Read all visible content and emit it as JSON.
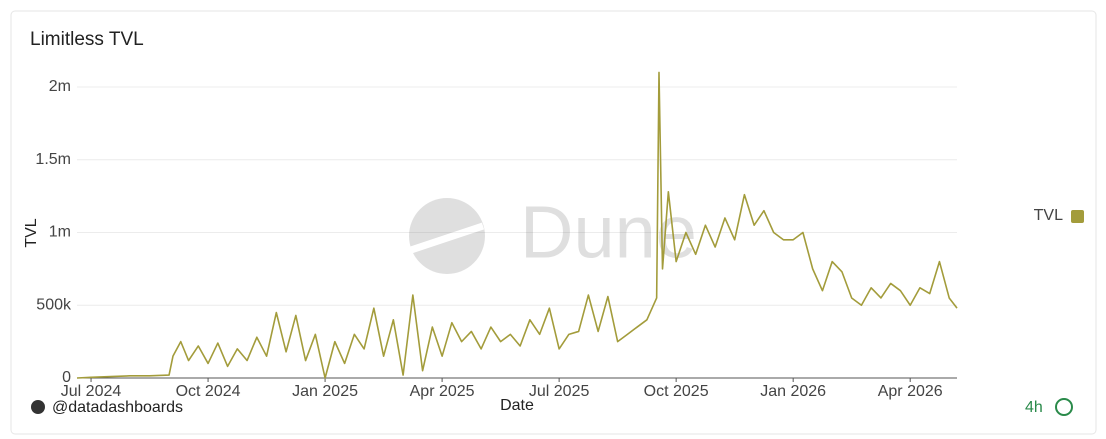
{
  "chart_data": {
    "type": "line",
    "title": "Limitless TVL",
    "x_label": "Date",
    "y_label": "TVL",
    "watermark": "Dune",
    "author": "@datadashboards",
    "refresh": "4h",
    "x": [
      -0.36,
      0,
      0.5,
      1,
      1.5,
      2,
      2.1,
      2.3,
      2.5,
      2.75,
      3,
      3.25,
      3.5,
      3.75,
      4,
      4.25,
      4.5,
      4.75,
      5,
      5.25,
      5.5,
      5.75,
      6,
      6.25,
      6.5,
      6.75,
      7,
      7.25,
      7.5,
      7.75,
      8,
      8.25,
      8.5,
      8.75,
      9,
      9.25,
      9.5,
      9.75,
      10,
      10.25,
      10.5,
      10.75,
      11,
      11.25,
      11.5,
      11.75,
      12,
      12.25,
      12.5,
      12.75,
      13,
      13.25,
      13.5,
      13.75,
      14,
      14.25,
      14.5,
      14.56,
      14.65,
      14.8,
      15,
      15.25,
      15.5,
      15.75,
      16,
      16.25,
      16.5,
      16.75,
      17,
      17.25,
      17.5,
      17.75,
      18,
      18.25,
      18.5,
      18.75,
      19,
      19.25,
      19.5,
      19.75,
      20,
      20.25,
      20.5,
      20.75,
      21,
      21.25,
      21.5,
      21.75,
      22,
      22.2
    ],
    "series": [
      {
        "name": "TVL",
        "color": "#a39c3b",
        "values": [
          0,
          5000,
          10000,
          15000,
          15000,
          20000,
          150000,
          250000,
          120000,
          220000,
          100000,
          240000,
          80000,
          200000,
          120000,
          280000,
          150000,
          450000,
          180000,
          430000,
          120000,
          300000,
          0,
          250000,
          100000,
          300000,
          200000,
          480000,
          150000,
          400000,
          20000,
          570000,
          50000,
          350000,
          150000,
          380000,
          250000,
          320000,
          200000,
          350000,
          250000,
          300000,
          220000,
          400000,
          300000,
          480000,
          200000,
          300000,
          320000,
          570000,
          320000,
          560000,
          250000,
          300000,
          350000,
          400000,
          550000,
          2100000,
          750000,
          1280000,
          800000,
          1000000,
          850000,
          1050000,
          900000,
          1100000,
          950000,
          1260000,
          1050000,
          1150000,
          1000000,
          950000,
          950000,
          1000000,
          750000,
          600000,
          800000,
          730000,
          550000,
          500000,
          620000,
          550000,
          650000,
          600000,
          500000,
          620000,
          580000,
          800000,
          550000,
          480000
        ]
      }
    ],
    "xlim": [
      -0.36,
      22.2
    ],
    "xticks": [
      {
        "value": 0,
        "label": "Jul 2024"
      },
      {
        "value": 3,
        "label": "Oct 2024"
      },
      {
        "value": 6,
        "label": "Jan 2025"
      },
      {
        "value": 9,
        "label": "Apr 2025"
      },
      {
        "value": 12,
        "label": "Jul 2025"
      },
      {
        "value": 15,
        "label": "Oct 2025"
      },
      {
        "value": 18,
        "label": "Jan 2026"
      },
      {
        "value": 21,
        "label": "Apr 2026"
      }
    ],
    "ylim": [
      0,
      2100000
    ],
    "yticks": [
      0,
      {
        "value": 500000,
        "label": "500k"
      },
      {
        "value": 1000000,
        "label": "1m"
      },
      {
        "value": 1500000,
        "label": "1.5m"
      },
      {
        "value": 2000000,
        "label": "2m"
      }
    ],
    "grid": true,
    "legend": "right"
  }
}
